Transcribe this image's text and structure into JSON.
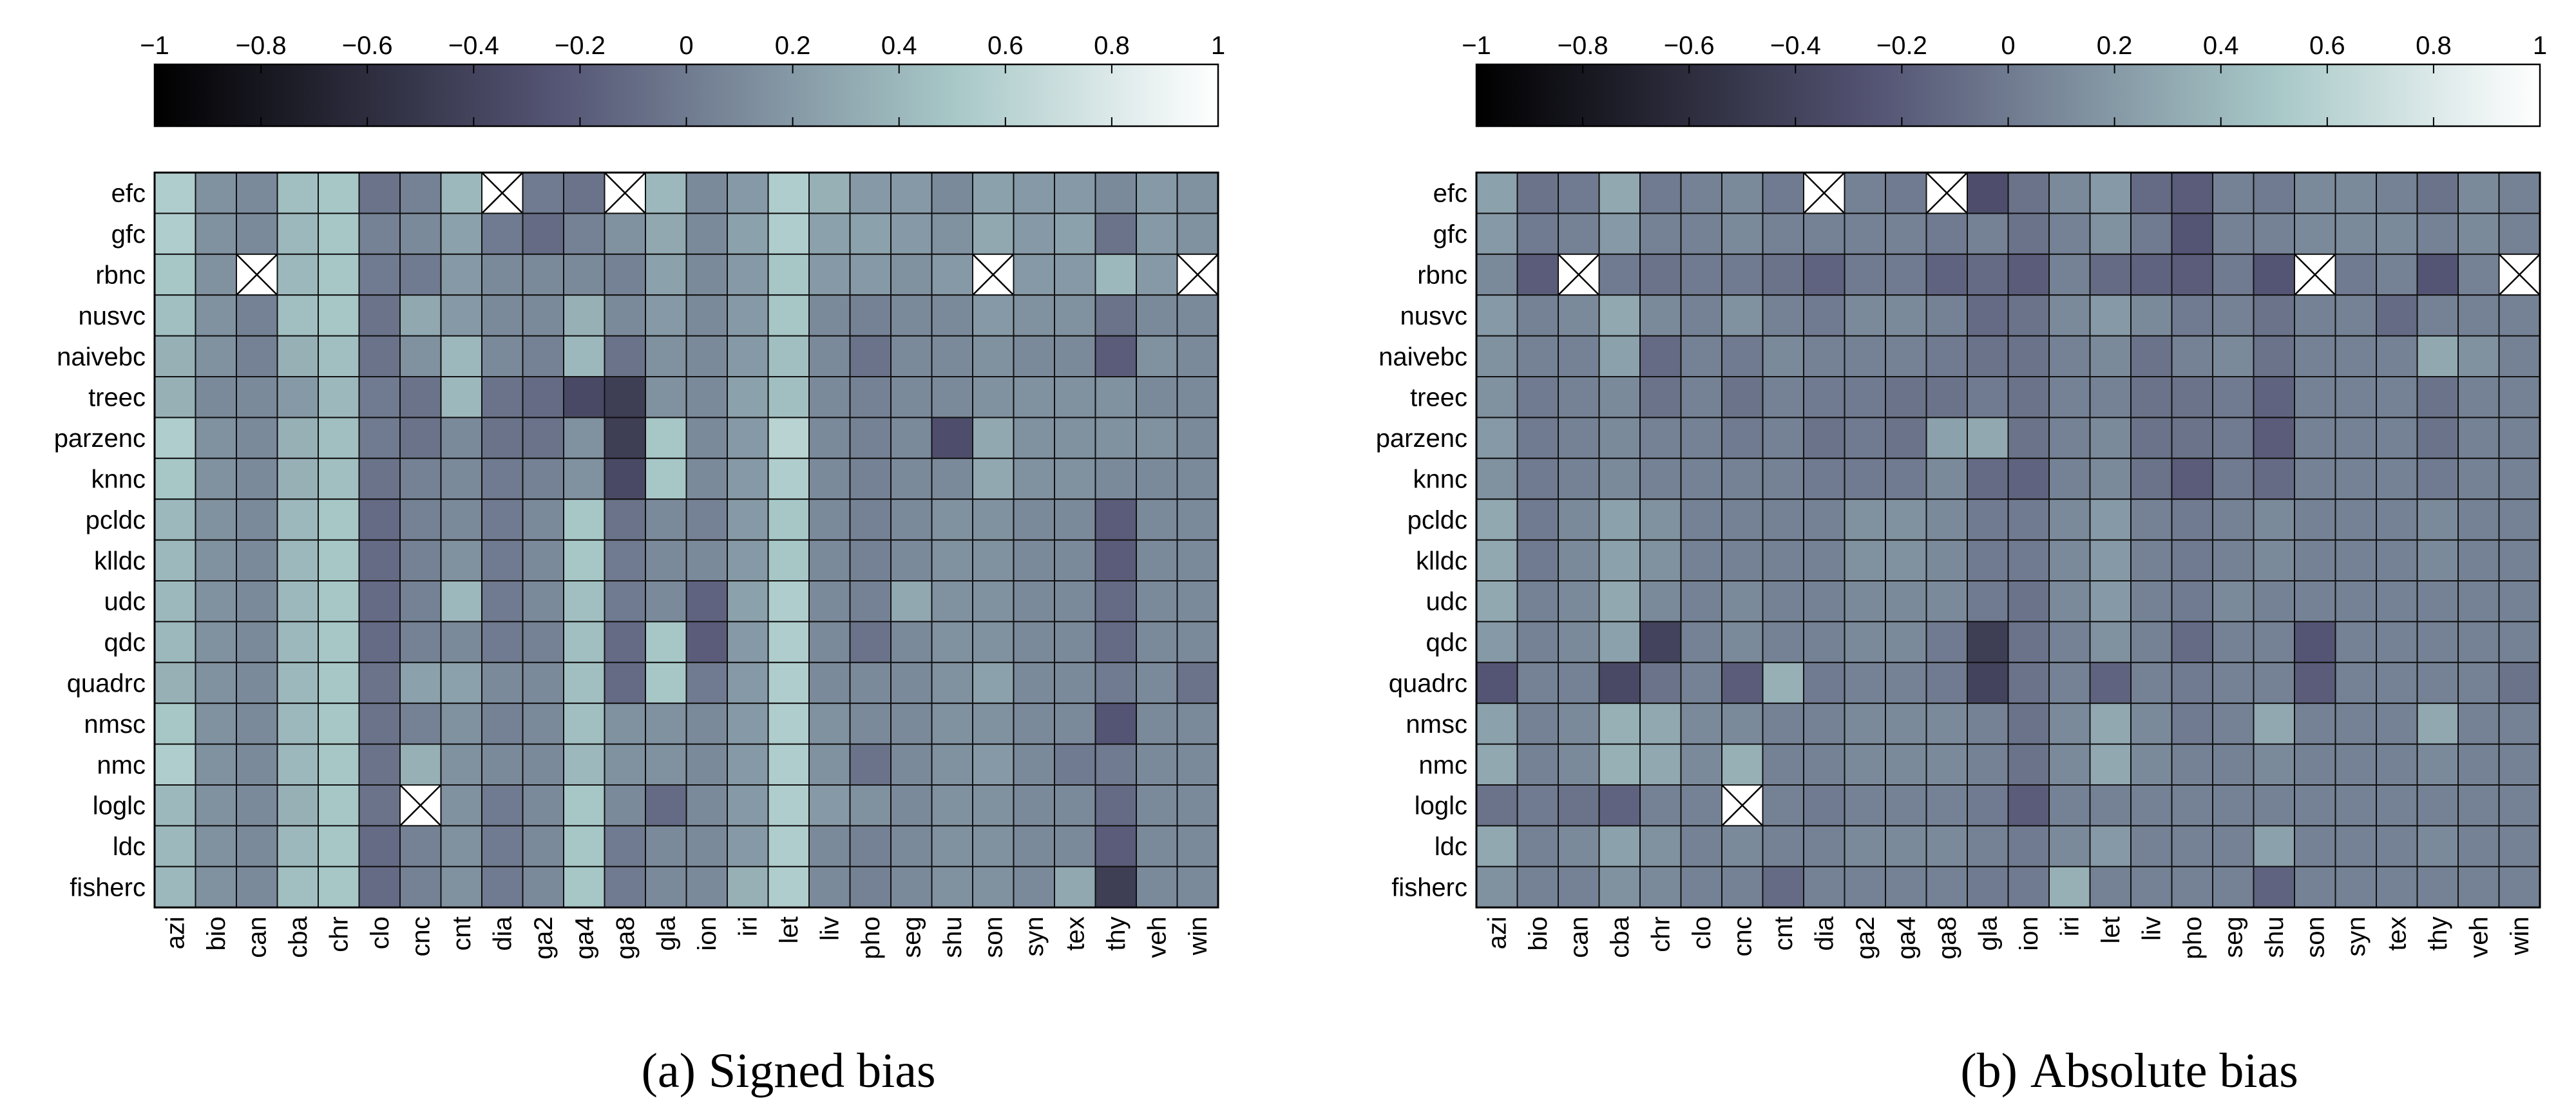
{
  "chart_data": [
    {
      "type": "heatmap",
      "panel": "a",
      "title": "Signed bias",
      "caption_letter": "(a)",
      "colorbar": {
        "min": -1,
        "max": 1,
        "ticks": [
          "−1",
          "−0.8",
          "−0.6",
          "−0.4",
          "−0.2",
          "0",
          "0.2",
          "0.4",
          "0.6",
          "0.8",
          "1"
        ],
        "colormap": "bone"
      },
      "rows": [
        "efc",
        "gfc",
        "rbnc",
        "nusvc",
        "naivebc",
        "treec",
        "parzenc",
        "knnc",
        "pcldc",
        "klldc",
        "udc",
        "qdc",
        "quadrc",
        "nmsc",
        "nmc",
        "loglc",
        "ldc",
        "fisherc"
      ],
      "cols": [
        "azi",
        "bio",
        "can",
        "cba",
        "chr",
        "clo",
        "cnc",
        "cnt",
        "dia",
        "ga2",
        "ga4",
        "ga8",
        "gla",
        "ion",
        "iri",
        "let",
        "liv",
        "pho",
        "seg",
        "shu",
        "son",
        "syn",
        "tex",
        "thy",
        "veh",
        "win"
      ],
      "missing_marker": "X",
      "values": [
        [
          0.55,
          0.15,
          0.1,
          0.45,
          0.5,
          -0.05,
          0.05,
          0.4,
          null,
          0.0,
          -0.05,
          null,
          0.4,
          0.1,
          0.2,
          0.55,
          0.35,
          0.2,
          0.2,
          0.1,
          0.25,
          0.2,
          0.2,
          0.1,
          0.2,
          0.15
        ],
        [
          0.55,
          0.15,
          0.1,
          0.4,
          0.5,
          0.05,
          0.1,
          0.25,
          0.0,
          -0.1,
          0.05,
          0.15,
          0.3,
          0.1,
          0.25,
          0.55,
          0.25,
          0.25,
          0.2,
          0.15,
          0.3,
          0.2,
          0.25,
          -0.05,
          0.2,
          0.15
        ],
        [
          0.5,
          0.15,
          null,
          0.4,
          0.5,
          0.0,
          0.0,
          0.2,
          0.1,
          0.1,
          0.1,
          0.05,
          0.25,
          0.1,
          0.2,
          0.5,
          0.2,
          0.2,
          0.15,
          0.2,
          null,
          0.2,
          0.2,
          0.4,
          0.2,
          null
        ],
        [
          0.45,
          0.15,
          0.05,
          0.45,
          0.5,
          -0.05,
          0.3,
          0.2,
          0.1,
          0.1,
          0.35,
          0.1,
          0.2,
          0.1,
          0.2,
          0.5,
          0.1,
          0.05,
          0.1,
          0.1,
          0.2,
          0.15,
          0.15,
          -0.05,
          0.1,
          0.1
        ],
        [
          0.35,
          0.15,
          0.05,
          0.35,
          0.45,
          -0.05,
          0.15,
          0.4,
          0.1,
          0.05,
          0.4,
          -0.05,
          0.15,
          0.1,
          0.2,
          0.45,
          0.1,
          -0.05,
          0.1,
          0.1,
          0.15,
          0.1,
          0.1,
          -0.2,
          0.15,
          0.1
        ],
        [
          0.35,
          0.1,
          0.1,
          0.2,
          0.4,
          0.0,
          -0.05,
          0.4,
          -0.05,
          -0.1,
          -0.35,
          -0.45,
          0.15,
          0.1,
          0.25,
          0.45,
          0.1,
          0.05,
          0.1,
          0.1,
          0.15,
          0.15,
          0.15,
          0.15,
          0.1,
          0.1
        ],
        [
          0.55,
          0.15,
          0.1,
          0.35,
          0.45,
          0.0,
          -0.05,
          0.1,
          -0.05,
          -0.05,
          0.15,
          -0.45,
          0.5,
          0.1,
          0.2,
          0.6,
          0.1,
          0.05,
          0.1,
          -0.3,
          0.3,
          0.15,
          0.15,
          0.15,
          0.15,
          0.1
        ],
        [
          0.5,
          0.15,
          0.1,
          0.35,
          0.45,
          -0.05,
          0.05,
          0.1,
          0.0,
          0.05,
          0.15,
          -0.35,
          0.5,
          0.1,
          0.2,
          0.55,
          0.1,
          0.05,
          0.1,
          0.1,
          0.3,
          0.15,
          0.15,
          0.1,
          0.1,
          0.1
        ],
        [
          0.4,
          0.15,
          0.1,
          0.4,
          0.5,
          -0.1,
          0.05,
          0.1,
          0.0,
          0.1,
          0.5,
          -0.05,
          0.1,
          0.05,
          0.2,
          0.5,
          0.1,
          0.05,
          0.1,
          0.15,
          0.15,
          0.1,
          0.1,
          -0.2,
          0.1,
          0.1
        ],
        [
          0.4,
          0.15,
          0.1,
          0.4,
          0.5,
          -0.1,
          0.05,
          0.15,
          0.0,
          0.1,
          0.5,
          0.0,
          0.1,
          0.1,
          0.2,
          0.5,
          0.1,
          0.05,
          0.1,
          0.15,
          0.15,
          0.1,
          0.1,
          -0.2,
          0.1,
          0.1
        ],
        [
          0.4,
          0.15,
          0.1,
          0.4,
          0.5,
          -0.1,
          0.05,
          0.4,
          0.0,
          0.1,
          0.45,
          0.0,
          0.1,
          -0.15,
          0.25,
          0.55,
          0.1,
          0.05,
          0.3,
          0.15,
          0.15,
          0.1,
          0.1,
          -0.1,
          0.1,
          0.1
        ],
        [
          0.4,
          0.15,
          0.1,
          0.4,
          0.5,
          -0.1,
          0.05,
          0.1,
          0.0,
          0.05,
          0.45,
          -0.1,
          0.5,
          -0.2,
          0.2,
          0.55,
          0.1,
          -0.05,
          0.1,
          0.15,
          0.15,
          0.1,
          0.1,
          -0.1,
          0.1,
          0.1
        ],
        [
          0.35,
          0.15,
          0.1,
          0.4,
          0.5,
          -0.05,
          0.25,
          0.25,
          0.1,
          0.1,
          0.45,
          -0.1,
          0.5,
          0.0,
          0.2,
          0.55,
          0.1,
          0.1,
          0.1,
          0.15,
          0.25,
          0.1,
          0.1,
          0.0,
          0.1,
          -0.05
        ],
        [
          0.5,
          0.15,
          0.1,
          0.4,
          0.5,
          -0.05,
          0.05,
          0.15,
          0.05,
          0.1,
          0.45,
          0.15,
          0.15,
          0.1,
          0.2,
          0.55,
          0.15,
          0.1,
          0.1,
          0.15,
          0.15,
          0.1,
          0.1,
          -0.25,
          0.1,
          0.1
        ],
        [
          0.55,
          0.15,
          0.1,
          0.4,
          0.5,
          -0.05,
          0.35,
          0.15,
          0.1,
          0.1,
          0.4,
          0.15,
          0.15,
          0.1,
          0.2,
          0.55,
          0.15,
          -0.05,
          0.1,
          0.15,
          0.2,
          0.1,
          0.0,
          0.0,
          0.1,
          0.1
        ],
        [
          0.4,
          0.15,
          0.1,
          0.35,
          0.5,
          -0.05,
          null,
          0.15,
          0.0,
          0.1,
          0.5,
          0.1,
          -0.1,
          0.1,
          0.2,
          0.55,
          0.2,
          0.15,
          0.1,
          0.15,
          0.15,
          0.1,
          0.1,
          -0.1,
          0.1,
          0.1
        ],
        [
          0.4,
          0.15,
          0.1,
          0.4,
          0.5,
          -0.1,
          0.05,
          0.15,
          0.0,
          0.1,
          0.5,
          0.0,
          0.1,
          0.1,
          0.2,
          0.55,
          0.1,
          0.05,
          0.1,
          0.15,
          0.15,
          0.1,
          0.1,
          -0.2,
          0.1,
          0.1
        ],
        [
          0.4,
          0.15,
          0.1,
          0.45,
          0.5,
          -0.1,
          0.05,
          0.15,
          0.0,
          0.1,
          0.5,
          0.0,
          0.1,
          0.1,
          0.35,
          0.55,
          0.1,
          0.05,
          0.1,
          0.15,
          0.15,
          0.1,
          0.3,
          -0.45,
          0.1,
          0.1
        ]
      ]
    },
    {
      "type": "heatmap",
      "panel": "b",
      "title": "Absolute bias",
      "caption_letter": "(b)",
      "colorbar": {
        "min": -1,
        "max": 1,
        "ticks": [
          "−1",
          "−0.8",
          "−0.6",
          "−0.4",
          "−0.2",
          "0",
          "0.2",
          "0.4",
          "0.6",
          "0.8",
          "1"
        ],
        "colormap": "bone"
      },
      "rows": [
        "efc",
        "gfc",
        "rbnc",
        "nusvc",
        "naivebc",
        "treec",
        "parzenc",
        "knnc",
        "pcldc",
        "klldc",
        "udc",
        "qdc",
        "quadrc",
        "nmsc",
        "nmc",
        "loglc",
        "ldc",
        "fisherc"
      ],
      "cols": [
        "azi",
        "bio",
        "can",
        "cba",
        "chr",
        "clo",
        "cnc",
        "cnt",
        "dia",
        "ga2",
        "ga4",
        "ga8",
        "gla",
        "ion",
        "iri",
        "let",
        "liv",
        "pho",
        "seg",
        "shu",
        "son",
        "syn",
        "tex",
        "thy",
        "veh",
        "win"
      ],
      "missing_marker": "X",
      "values": [
        [
          0.25,
          -0.05,
          0.0,
          0.3,
          0.0,
          0.05,
          0.1,
          0.0,
          null,
          0.05,
          0.0,
          null,
          -0.3,
          -0.05,
          0.1,
          0.2,
          -0.1,
          -0.2,
          0.05,
          0.0,
          0.1,
          0.1,
          0.05,
          -0.05,
          0.1,
          0.05
        ],
        [
          0.2,
          0.0,
          0.05,
          0.2,
          0.05,
          0.05,
          0.1,
          0.05,
          0.05,
          0.05,
          0.05,
          0.0,
          0.05,
          -0.05,
          0.05,
          0.15,
          0.0,
          -0.25,
          0.05,
          0.05,
          0.1,
          0.1,
          0.1,
          0.05,
          0.1,
          0.05
        ],
        [
          0.1,
          -0.2,
          null,
          0.0,
          -0.05,
          0.0,
          0.0,
          -0.05,
          -0.15,
          0.0,
          0.0,
          -0.15,
          -0.1,
          -0.2,
          0.05,
          -0.1,
          -0.15,
          -0.2,
          0.0,
          -0.25,
          null,
          0.0,
          0.05,
          -0.25,
          0.05,
          null
        ],
        [
          0.2,
          0.05,
          0.1,
          0.3,
          0.1,
          0.05,
          0.15,
          0.05,
          0.0,
          0.1,
          0.1,
          0.05,
          -0.1,
          -0.05,
          0.1,
          0.2,
          0.1,
          0.0,
          0.05,
          -0.05,
          0.05,
          0.05,
          -0.1,
          0.05,
          0.05,
          0.05
        ],
        [
          0.15,
          0.05,
          0.05,
          0.25,
          -0.1,
          0.05,
          0.0,
          0.1,
          0.05,
          0.05,
          0.05,
          0.0,
          -0.05,
          -0.05,
          0.05,
          0.1,
          -0.05,
          0.05,
          0.1,
          -0.05,
          0.05,
          0.05,
          0.05,
          0.3,
          0.15,
          0.05
        ],
        [
          0.15,
          0.0,
          0.05,
          0.1,
          -0.05,
          0.05,
          -0.05,
          0.05,
          0.0,
          0.0,
          -0.05,
          -0.05,
          0.0,
          -0.05,
          0.05,
          0.05,
          -0.05,
          -0.05,
          0.0,
          -0.15,
          0.05,
          0.05,
          0.05,
          -0.05,
          0.05,
          0.05
        ],
        [
          0.2,
          0.0,
          0.05,
          0.1,
          0.05,
          0.05,
          0.0,
          0.05,
          -0.05,
          0.0,
          -0.05,
          0.25,
          0.3,
          -0.05,
          0.05,
          0.1,
          -0.05,
          -0.05,
          0.0,
          -0.2,
          0.05,
          0.05,
          0.05,
          -0.05,
          0.05,
          0.05
        ],
        [
          0.15,
          0.0,
          0.05,
          0.1,
          0.05,
          0.05,
          0.05,
          0.05,
          0.0,
          0.0,
          0.0,
          0.1,
          -0.1,
          -0.15,
          0.05,
          0.1,
          -0.05,
          -0.2,
          0.0,
          -0.1,
          0.05,
          0.05,
          0.05,
          0.0,
          0.05,
          0.05
        ],
        [
          0.3,
          0.0,
          0.1,
          0.25,
          0.15,
          0.05,
          0.05,
          0.05,
          0.05,
          0.15,
          0.15,
          0.1,
          0.0,
          0.0,
          0.1,
          0.2,
          0.05,
          0.0,
          0.05,
          0.1,
          0.05,
          0.05,
          0.05,
          0.1,
          0.05,
          0.05
        ],
        [
          0.3,
          0.0,
          0.1,
          0.25,
          0.15,
          0.05,
          0.05,
          0.05,
          0.05,
          0.15,
          0.15,
          0.1,
          0.0,
          0.0,
          0.1,
          0.2,
          0.05,
          0.0,
          0.05,
          0.1,
          0.05,
          0.05,
          0.05,
          0.1,
          0.05,
          0.05
        ],
        [
          0.3,
          0.05,
          0.1,
          0.3,
          0.1,
          0.05,
          0.1,
          0.05,
          0.05,
          0.1,
          0.1,
          0.1,
          0.0,
          -0.05,
          0.1,
          0.2,
          0.05,
          0.0,
          0.1,
          0.05,
          0.05,
          0.05,
          0.05,
          0.05,
          0.05,
          0.05
        ],
        [
          0.2,
          0.05,
          0.1,
          0.25,
          -0.4,
          0.05,
          0.1,
          0.05,
          0.05,
          0.1,
          0.1,
          0.0,
          -0.45,
          -0.05,
          0.05,
          0.15,
          0.05,
          -0.1,
          0.05,
          0.05,
          -0.25,
          0.05,
          0.05,
          0.05,
          0.05,
          0.05
        ],
        [
          -0.25,
          0.05,
          0.05,
          -0.35,
          -0.05,
          0.05,
          -0.2,
          0.35,
          0.0,
          0.05,
          0.05,
          0.0,
          -0.4,
          -0.05,
          0.05,
          -0.15,
          0.05,
          0.0,
          0.05,
          0.05,
          -0.2,
          0.05,
          0.05,
          0.05,
          0.05,
          -0.05
        ],
        [
          0.25,
          0.05,
          0.1,
          0.35,
          0.3,
          0.1,
          0.1,
          0.05,
          0.05,
          0.1,
          0.1,
          0.1,
          0.05,
          -0.05,
          0.1,
          0.3,
          0.1,
          0.0,
          0.05,
          0.3,
          0.05,
          0.05,
          0.05,
          0.3,
          0.05,
          0.05
        ],
        [
          0.3,
          0.05,
          0.1,
          0.35,
          0.3,
          0.1,
          0.35,
          0.05,
          0.05,
          0.1,
          0.1,
          0.1,
          0.05,
          -0.05,
          0.1,
          0.3,
          0.1,
          0.05,
          0.05,
          0.1,
          0.05,
          0.05,
          0.05,
          0.1,
          0.05,
          0.05
        ],
        [
          -0.05,
          0.0,
          -0.05,
          -0.15,
          0.05,
          0.05,
          null,
          0.05,
          0.0,
          0.05,
          0.05,
          0.05,
          0.0,
          -0.2,
          0.05,
          0.05,
          0.05,
          0.05,
          0.05,
          0.05,
          0.05,
          0.05,
          0.05,
          0.05,
          0.05,
          0.05
        ],
        [
          0.3,
          0.05,
          0.1,
          0.25,
          0.15,
          0.05,
          0.1,
          0.05,
          0.05,
          0.1,
          0.1,
          0.1,
          0.05,
          0.0,
          0.1,
          0.2,
          0.05,
          0.05,
          0.05,
          0.25,
          0.05,
          0.05,
          0.05,
          0.1,
          0.05,
          0.05
        ],
        [
          0.15,
          0.05,
          0.05,
          0.15,
          0.1,
          0.05,
          0.05,
          -0.1,
          0.05,
          0.05,
          0.05,
          0.05,
          0.0,
          0.0,
          0.35,
          0.05,
          0.05,
          0.05,
          0.05,
          -0.15,
          0.05,
          0.05,
          0.05,
          0.05,
          0.05,
          0.05
        ]
      ]
    }
  ]
}
